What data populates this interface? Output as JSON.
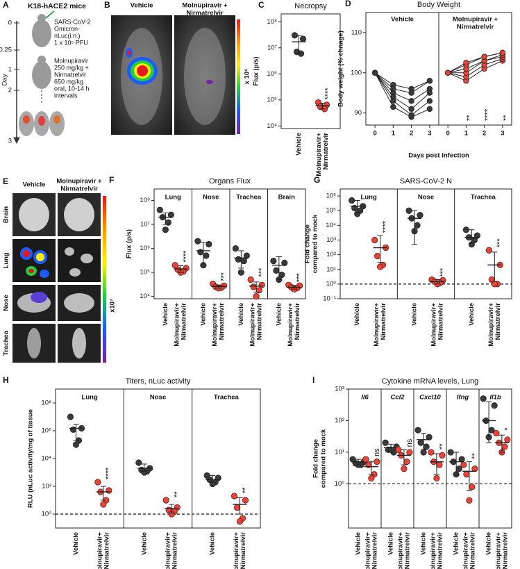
{
  "diagram": {
    "label": "A",
    "title": "K18-hACE2 mice",
    "axis_label": "Day",
    "days": [
      "0",
      "0.25",
      "1",
      "2",
      "3"
    ],
    "infection": [
      "SARS-CoV-2",
      "Omicron-",
      "nLuc(i.n.)",
      "1 x 10⁵ PFU"
    ],
    "treatment": [
      "Molnupiravir",
      "250 mg/kg +",
      "Nirmatrelvir",
      "650 mg/kg",
      "oral, 10-14 h",
      "intervals"
    ]
  },
  "images": [
    {
      "label": "B",
      "columns": [
        [
          "Vehicle"
        ],
        [
          "Molnupiravir +",
          "Nirmatrelvir"
        ]
      ],
      "scale_label": "x 10⁶"
    },
    {
      "label": "E",
      "columns": [
        [
          "Vehicle"
        ],
        [
          "Molnupiravir +",
          "Nirmatrelvir"
        ]
      ],
      "rows": [
        "Brain",
        "Lung",
        "Nose",
        "Trachea"
      ],
      "scale_label": "x10⁷"
    }
  ],
  "chart_data": [
    {
      "type": "dot",
      "label": "C",
      "title": "Necropsy",
      "ylabel": [
        "Flux (p/s)"
      ],
      "log": true,
      "ylim": [
        8000,
        200000000
      ],
      "yticks": [
        {
          "value": 10000,
          "label": "10⁴"
        },
        {
          "value": 100000,
          "label": "10⁵"
        },
        {
          "value": 1000000,
          "label": "10⁶"
        },
        {
          "value": 10000000,
          "label": "10⁷"
        },
        {
          "value": 100000000,
          "label": "10⁸"
        }
      ],
      "colors": [
        "#3a3a3a",
        "#e8443a"
      ],
      "categories": [
        [
          "Vehicle"
        ],
        [
          "Molnupiravir+",
          "Nirmatrelvir"
        ]
      ],
      "groups": [
        {
          "stars": "****",
          "values": [
            [
              30000000,
              22000000,
              7000000,
              6000000
            ],
            [
              80000,
              65000,
              55000,
              45000
            ]
          ],
          "means": [
            17000000,
            60000
          ],
          "errors": [
            [
              6000000,
              30000000
            ],
            [
              45000,
              75000
            ]
          ]
        }
      ]
    },
    {
      "type": "line",
      "label": "D",
      "title": "Body Weight",
      "ylabel": [
        "Body weight (% chnage)"
      ],
      "xlabel": "Days post infection",
      "ylim": [
        87,
        115
      ],
      "yticks": [
        90,
        100,
        110
      ],
      "x": [
        0,
        1,
        2,
        3
      ],
      "xlim": [
        -0.5,
        3.5
      ],
      "groups": [
        {
          "name": [
            "Vehicle"
          ],
          "color": "#3a3a3a",
          "series": [
            [
              100,
              97,
              96,
              98
            ],
            [
              100,
              96,
              95,
              98
            ],
            [
              100,
              95,
              93,
              96
            ],
            [
              100,
              94,
              91,
              95
            ],
            [
              100,
              93,
              89.5,
              93
            ],
            [
              100,
              91.5,
              89,
              91
            ]
          ]
        },
        {
          "name": [
            "Molnupiravir +",
            "Nirmatrelvir"
          ],
          "color": "#e8443a",
          "stars": [
            null,
            "**",
            "****",
            "**"
          ],
          "series": [
            [
              100,
              98,
              101,
              103
            ],
            [
              100,
              99,
              102,
              103.5
            ],
            [
              100,
              100,
              103,
              104
            ],
            [
              100,
              101,
              103,
              104.5
            ],
            [
              100,
              102,
              104,
              105
            ],
            [
              100,
              102.5,
              104,
              105
            ]
          ]
        }
      ]
    },
    {
      "type": "dot",
      "label": "F",
      "title": "Organs Flux",
      "ylabel": [
        "Flux (p/s)"
      ],
      "log": true,
      "ylim": [
        8000,
        300000000
      ],
      "yticks": [
        {
          "value": 10000,
          "label": "10⁴"
        },
        {
          "value": 100000,
          "label": "10⁵"
        },
        {
          "value": 1000000,
          "label": "10⁶"
        },
        {
          "value": 10000000,
          "label": "10⁷"
        },
        {
          "value": 100000000,
          "label": "10⁸"
        }
      ],
      "colors": [
        "#3a3a3a",
        "#e8443a"
      ],
      "categories": [
        [
          "Vehicle"
        ],
        [
          "Molnupiravir+",
          "Nirmatrelvir"
        ]
      ],
      "groups": [
        {
          "name": "Lung",
          "stars": "****",
          "values": [
            [
              40000000,
              25000000,
              20000000,
              12000000,
              6000000
            ],
            [
              200000,
              150000,
              130000,
              110000,
              100000
            ]
          ],
          "means": [
            20000000,
            140000
          ],
          "errors": [
            [
              10000000,
              30000000
            ],
            [
              100000,
              190000
            ]
          ]
        },
        {
          "name": "Nose",
          "stars": "***",
          "values": [
            [
              2000000,
              1500000,
              700000,
              500000,
              200000
            ],
            [
              33000,
              28000,
              25000,
              23000,
              22000
            ]
          ],
          "means": [
            800000,
            26000
          ],
          "errors": [
            [
              200000,
              1800000
            ],
            [
              22000,
              30000
            ]
          ]
        },
        {
          "name": "Trachea",
          "stars": "***",
          "values": [
            [
              1000000,
              500000,
              350000,
              300000,
              100000
            ],
            [
              50000,
              30000,
              25000,
              18000,
              10000
            ]
          ],
          "means": [
            400000,
            27000
          ],
          "errors": [
            [
              150000,
              800000
            ],
            [
              15000,
              40000
            ]
          ]
        },
        {
          "name": "Brain",
          "stars": "***",
          "values": [
            [
              300000,
              250000,
              120000,
              80000,
              50000
            ],
            [
              30000,
              28000,
              24000,
              22000,
              20000
            ]
          ],
          "means": [
            200000,
            24000
          ],
          "errors": [
            [
              50000,
              450000
            ],
            [
              20000,
              29000
            ]
          ]
        }
      ]
    },
    {
      "type": "dot",
      "label": "G",
      "title": "SARS-CoV-2 N",
      "ylabel": [
        "Fold change",
        "compared to mock"
      ],
      "log": true,
      "ylim": [
        0.1,
        3000000
      ],
      "refline": 1,
      "yticks": [
        {
          "value": 0.1,
          "label": "10⁻¹"
        },
        {
          "value": 1,
          "label": "10⁰"
        },
        {
          "value": 10,
          "label": "10¹"
        },
        {
          "value": 100,
          "label": "10²"
        },
        {
          "value": 1000,
          "label": "10³"
        },
        {
          "value": 10000,
          "label": "10⁴"
        },
        {
          "value": 100000,
          "label": "10⁵"
        },
        {
          "value": 1000000,
          "label": "10⁶"
        }
      ],
      "colors": [
        "#3a3a3a",
        "#e8443a"
      ],
      "categories": [
        [
          "Vehicle"
        ],
        [
          "Molnupiravir+",
          "Nirmatrelvir"
        ]
      ],
      "groups": [
        {
          "name": "Lung",
          "stars": "****",
          "values": [
            [
              500000,
              200000,
              150000,
              100000,
              60000
            ],
            [
              1000,
              300,
              80,
              20,
              15
            ]
          ],
          "means": [
            200000,
            300
          ],
          "errors": [
            [
              80000,
              500000
            ],
            [
              30,
              2000
            ]
          ]
        },
        {
          "name": "Nose",
          "stars": "***",
          "values": [
            [
              100000,
              50000,
              30000,
              10000,
              4000
            ],
            [
              2,
              1.8,
              1.5,
              1.2,
              1
            ]
          ],
          "means": [
            30000,
            1.5
          ],
          "errors": [
            [
              500,
              100000
            ],
            [
              1,
              2
            ]
          ]
        },
        {
          "name": "Trachea",
          "stars": "***",
          "values": [
            [
              5000,
              2000,
              1500,
              1000,
              500
            ],
            [
              200,
              20,
              2,
              1,
              1
            ]
          ],
          "means": [
            1500,
            20
          ],
          "errors": [
            [
              600,
              5000
            ],
            [
              1.5,
              150
            ]
          ]
        }
      ]
    },
    {
      "type": "dot",
      "label": "H",
      "title": "Titers, nLuc activity",
      "ylabel": [
        "RLU (nLuc activity/mg of tissue"
      ],
      "log": true,
      "ylim": [
        0.1,
        1000000000
      ],
      "refline": 1,
      "yticks": [
        {
          "value": 1,
          "label": "10⁰"
        },
        {
          "value": 100,
          "label": "10²"
        },
        {
          "value": 10000,
          "label": "10⁴"
        },
        {
          "value": 1000000,
          "label": "10⁶"
        },
        {
          "value": 100000000,
          "label": "10⁸"
        }
      ],
      "colors": [
        "#3a3a3a",
        "#e8443a"
      ],
      "categories": [
        [
          "Vehicle"
        ],
        [
          "Molnupiravir+",
          "Nirmatrelvir"
        ]
      ],
      "groups": [
        {
          "name": "Lung",
          "stars": "****",
          "values": [
            [
              10000000,
              1500000,
              1200000,
              200000,
              100000
            ],
            [
              200,
              50,
              40,
              10,
              5
            ]
          ],
          "means": [
            1500000,
            40
          ],
          "errors": [
            [
              200000,
              3000000
            ],
            [
              10,
              100
            ]
          ]
        },
        {
          "name": "Nose",
          "stars": "**",
          "values": [
            [
              5000,
              2000,
              1500,
              1200,
              1000
            ],
            [
              10,
              3,
              2,
              1.5,
              1
            ]
          ],
          "means": [
            2000,
            2.5
          ],
          "errors": [
            [
              1200,
              4000
            ],
            [
              1.2,
              5
            ]
          ]
        },
        {
          "name": "Trachea",
          "stars": "**",
          "values": [
            [
              600,
              400,
              300,
              200,
              150
            ],
            [
              20,
              10,
              3,
              0.5,
              0.3
            ]
          ],
          "means": [
            300,
            5
          ],
          "errors": [
            [
              200,
              600
            ],
            [
              1,
              15
            ]
          ]
        }
      ]
    },
    {
      "type": "dot",
      "label": "I",
      "title": "Cytokine mRNA levels,  Lung",
      "ylabel": [
        "Fold change",
        "compared to mock"
      ],
      "log": true,
      "ylim": [
        0.04,
        1000
      ],
      "refline": 1,
      "group_style": "italic",
      "yticks": [
        {
          "value": 1,
          "label": "10⁰"
        },
        {
          "value": 10,
          "label": "10¹"
        },
        {
          "value": 100,
          "label": "10²"
        },
        {
          "value": 1000,
          "label": "10³"
        }
      ],
      "colors": [
        "#3a3a3a",
        "#e8443a"
      ],
      "categories": [
        [
          "Vehicle"
        ],
        [
          "Molnupiravir+",
          "Nirmatrelvir"
        ]
      ],
      "groups": [
        {
          "name": "Il6",
          "stars": "ns",
          "values": [
            [
              6,
              5,
              4.5,
              4,
              4
            ],
            [
              6,
              5,
              4,
              2,
              1.5
            ]
          ],
          "means": [
            5,
            3.5
          ],
          "errors": [
            [
              4,
              6
            ],
            [
              2,
              5
            ]
          ]
        },
        {
          "name": "Ccl2",
          "stars": "ns",
          "values": [
            [
              20,
              15,
              12,
              10,
              12
            ],
            [
              12,
              10,
              8,
              5,
              3
            ]
          ],
          "means": [
            14,
            8
          ],
          "errors": [
            [
              10,
              18
            ],
            [
              4,
              12
            ]
          ]
        },
        {
          "name": "Cxcl10",
          "stars": "**",
          "values": [
            [
              50,
              30,
              20,
              15,
              10
            ],
            [
              10,
              8,
              5,
              4,
              1.5
            ]
          ],
          "means": [
            25,
            5
          ],
          "errors": [
            [
              12,
              40
            ],
            [
              2,
              9
            ]
          ]
        },
        {
          "name": "Ifng",
          "stars": "**",
          "values": [
            [
              10,
              6,
              5,
              3,
              2
            ],
            [
              4,
              3,
              2,
              0.8,
              0.3
            ]
          ],
          "means": [
            5,
            2.5
          ],
          "errors": [
            [
              2,
              10
            ],
            [
              0.6,
              5
            ]
          ]
        },
        {
          "name": "Il1b",
          "stars": "*",
          "values": [
            [
              500,
              300,
              100,
              50,
              30
            ],
            [
              40,
              25,
              20,
              15,
              10
            ]
          ],
          "means": [
            100,
            20
          ],
          "errors": [
            [
              20,
              400
            ],
            [
              10,
              35
            ]
          ]
        }
      ]
    }
  ]
}
